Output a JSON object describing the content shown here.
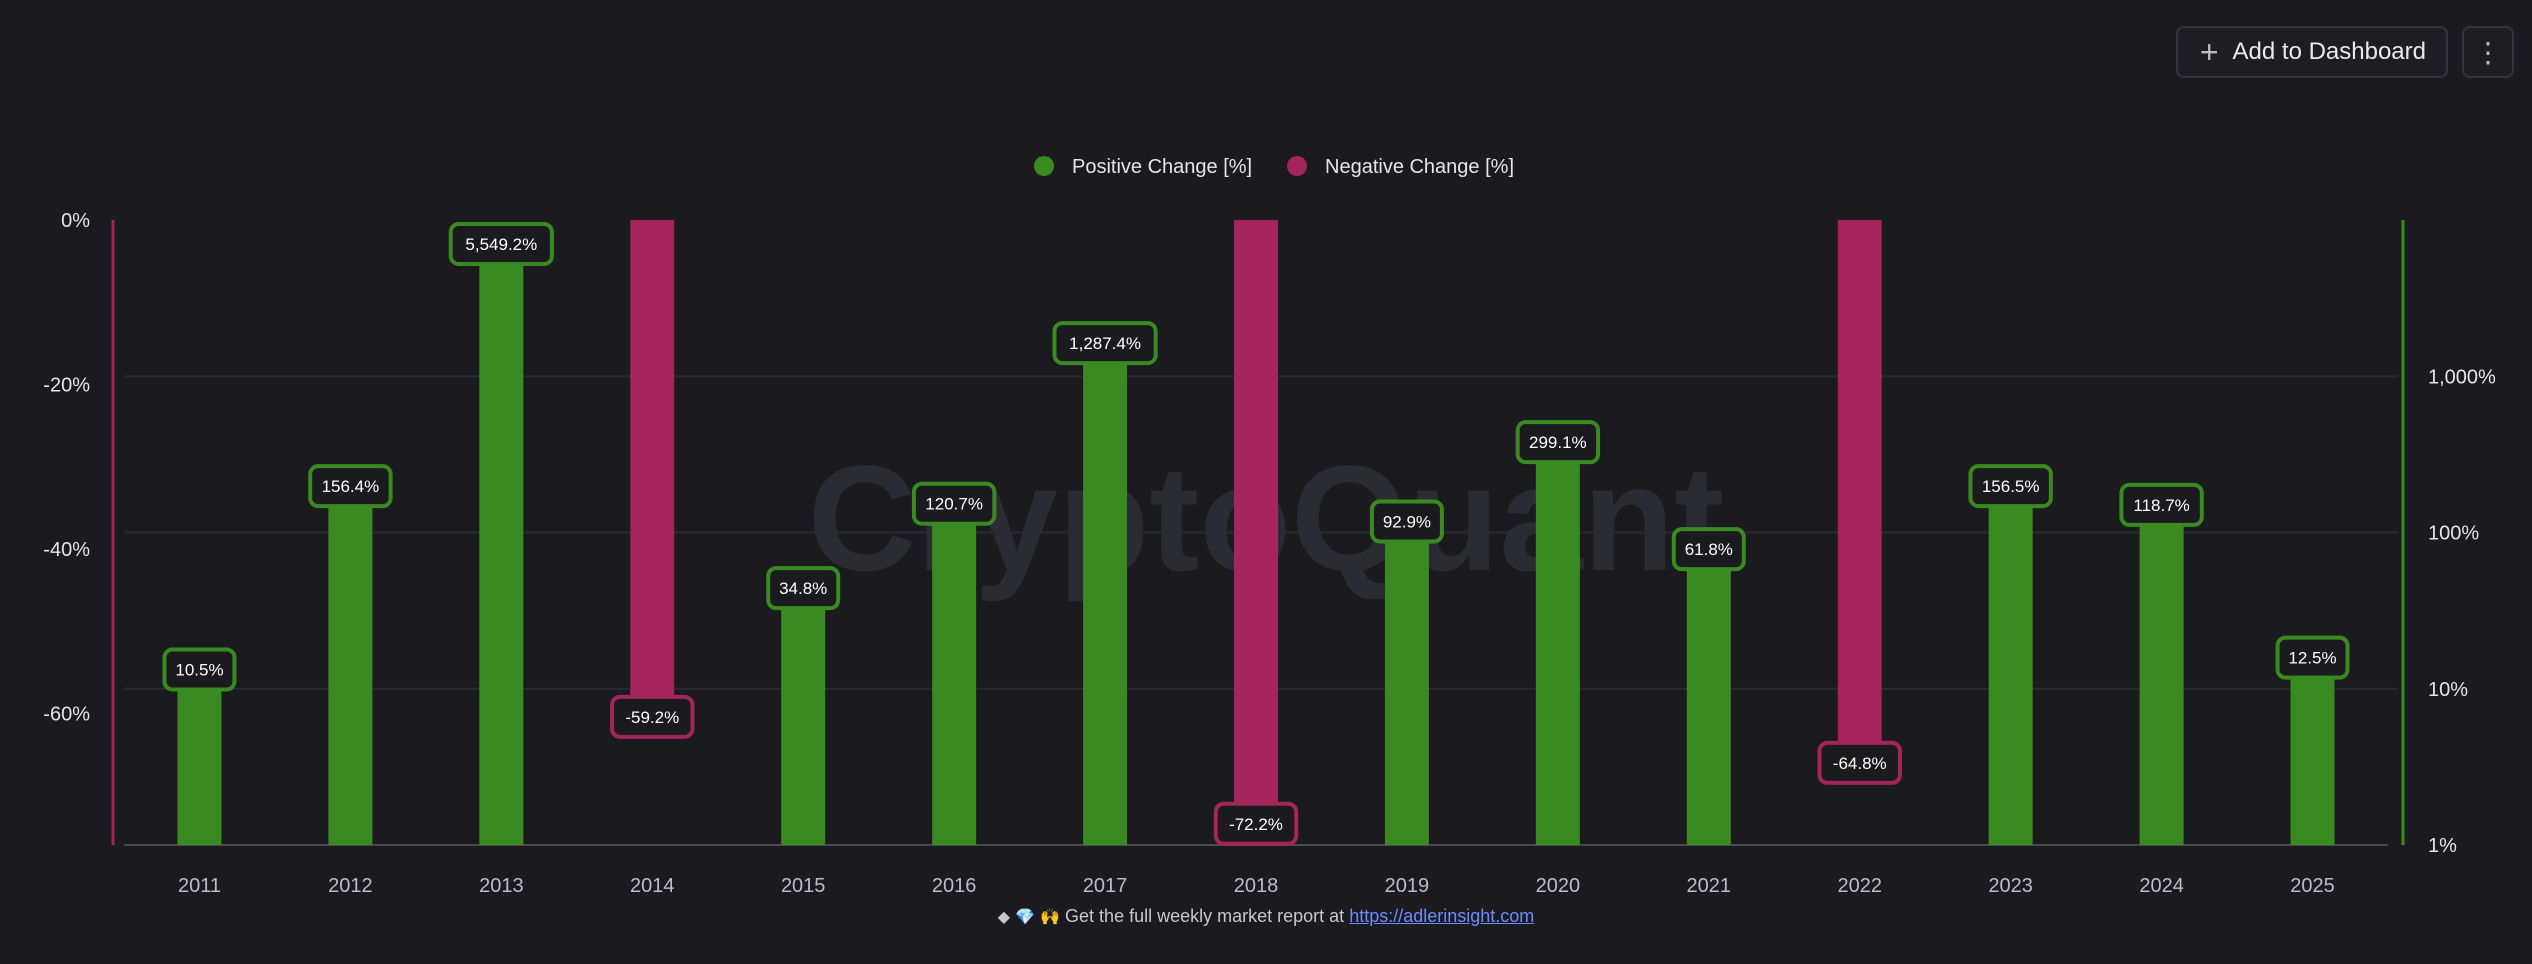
{
  "toolbar": {
    "add_label": "Add to Dashboard",
    "add_icon": "plus-icon",
    "more_icon": "more-vertical-icon"
  },
  "footer": {
    "icons": "◆ 💎 🙌",
    "text": "Get the full weekly market report at",
    "link_text": "https://adlerinsight.com"
  },
  "colors": {
    "positive": "#3a8a22",
    "negative": "#a4245c",
    "background": "#1a1a1f"
  },
  "chart_data": {
    "type": "bar",
    "title": "",
    "watermark": "CryptoQuant",
    "categories": [
      "2011",
      "2012",
      "2013",
      "2014",
      "2015",
      "2016",
      "2017",
      "2018",
      "2019",
      "2020",
      "2021",
      "2022",
      "2023",
      "2024",
      "2025"
    ],
    "series": [
      {
        "name": "Positive Change [%]",
        "axis": "right",
        "scale": "log",
        "values": [
          10.5,
          156.4,
          5549.2,
          null,
          34.8,
          120.7,
          1287.4,
          null,
          92.9,
          299.1,
          61.8,
          null,
          156.5,
          118.7,
          12.5
        ],
        "labels": [
          "10.5%",
          "156.4%",
          "5,549.2%",
          null,
          "34.8%",
          "120.7%",
          "1,287.4%",
          null,
          "92.9%",
          "299.1%",
          "61.8%",
          null,
          "156.5%",
          "118.7%",
          "12.5%"
        ]
      },
      {
        "name": "Negative Change [%]",
        "axis": "left",
        "scale": "linear",
        "values": [
          null,
          null,
          null,
          -59.2,
          null,
          null,
          null,
          -72.2,
          null,
          null,
          null,
          -64.8,
          null,
          null,
          null
        ],
        "labels": [
          null,
          null,
          null,
          "-59.2%",
          null,
          null,
          null,
          "-72.2%",
          null,
          null,
          null,
          "-64.8%",
          null,
          null,
          null
        ]
      }
    ],
    "left_axis": {
      "range": [
        -76,
        0
      ],
      "ticks": [
        0,
        -20,
        -40,
        -60
      ],
      "tick_labels": [
        "0%",
        "-20%",
        "-40%",
        "-60%"
      ]
    },
    "right_axis": {
      "scale": "log",
      "range": [
        1,
        10000
      ],
      "ticks": [
        1,
        10,
        100,
        1000
      ],
      "tick_labels": [
        "1%",
        "10%",
        "100%",
        "1,000%"
      ]
    },
    "legend_position": "top-center",
    "grid": true
  }
}
